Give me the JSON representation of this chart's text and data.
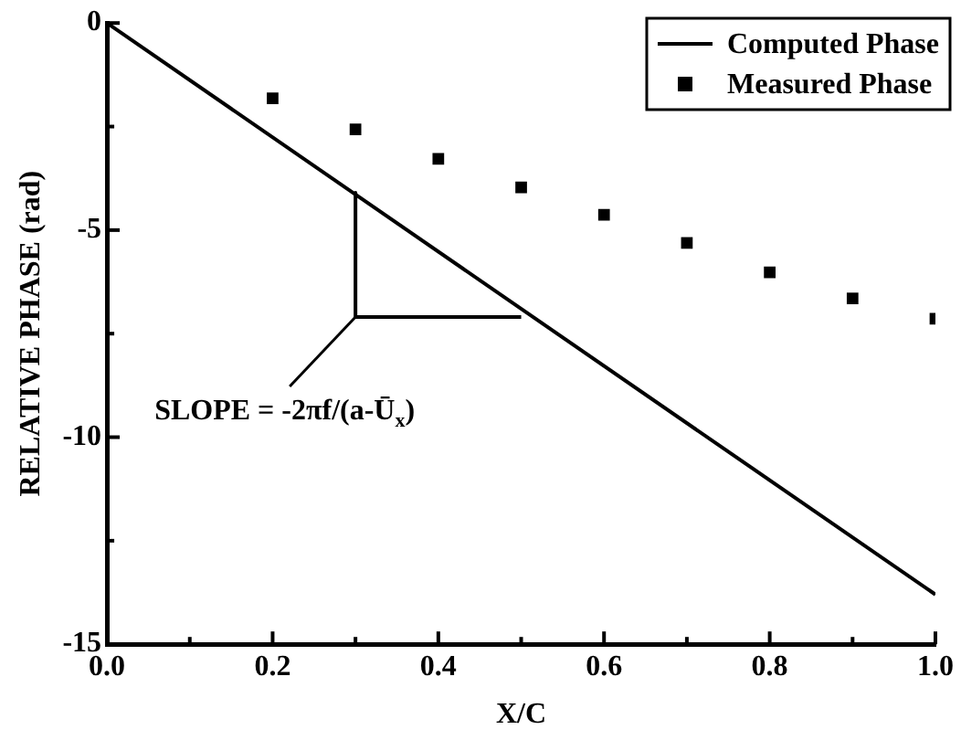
{
  "chart_data": {
    "type": "line",
    "xlabel": "X/C",
    "ylabel": "RELATIVE PHASE (rad)",
    "xlim": [
      0,
      1
    ],
    "xticks": [
      {
        "value": 0,
        "label": "0.0"
      },
      {
        "value": 0.1,
        "label": null
      },
      {
        "value": 0.2,
        "label": "0.2"
      },
      {
        "value": 0.3,
        "label": null
      },
      {
        "value": 0.4,
        "label": "0.4"
      },
      {
        "value": 0.5,
        "label": null
      },
      {
        "value": 0.6,
        "label": "0.6"
      },
      {
        "value": 0.7,
        "label": null
      },
      {
        "value": 0.8,
        "label": "0.8"
      },
      {
        "value": 0.9,
        "label": null
      },
      {
        "value": 1,
        "label": "1.0"
      }
    ],
    "ylim": [
      -15,
      0
    ],
    "yticks": [
      -15,
      {
        "value": -12.5,
        "label": null
      },
      -10,
      {
        "value": -7.5,
        "label": null
      },
      -5,
      {
        "value": -2.5,
        "label": null
      },
      0
    ],
    "grid": false,
    "legend": "top right",
    "series": [
      {
        "name": "Computed Phase",
        "color": "#000000",
        "marker": "none",
        "x": [
          0,
          1
        ],
        "values": [
          0,
          -13.8
        ]
      },
      {
        "name": "Measured Phase",
        "type": "scatter",
        "color": "#000000",
        "marker": "square",
        "x": [
          0.2,
          0.3,
          0.4,
          0.5,
          0.6,
          0.7,
          0.8,
          0.9,
          1.0
        ],
        "values": [
          -1.82,
          -2.57,
          -3.28,
          -3.97,
          -4.63,
          -5.31,
          -6.02,
          -6.65,
          -7.14
        ]
      },
      {
        "color": "#000000",
        "marker": "none",
        "x": [
          0.3,
          0.3,
          0.5
        ],
        "values": [
          -4.1,
          -7.1,
          -7.1
        ]
      }
    ],
    "annotations": [
      {
        "text": "SLOPE = -2πf/(a-Ū$_{x}$)",
        "x": 0.3,
        "y": -7.1
      }
    ]
  }
}
